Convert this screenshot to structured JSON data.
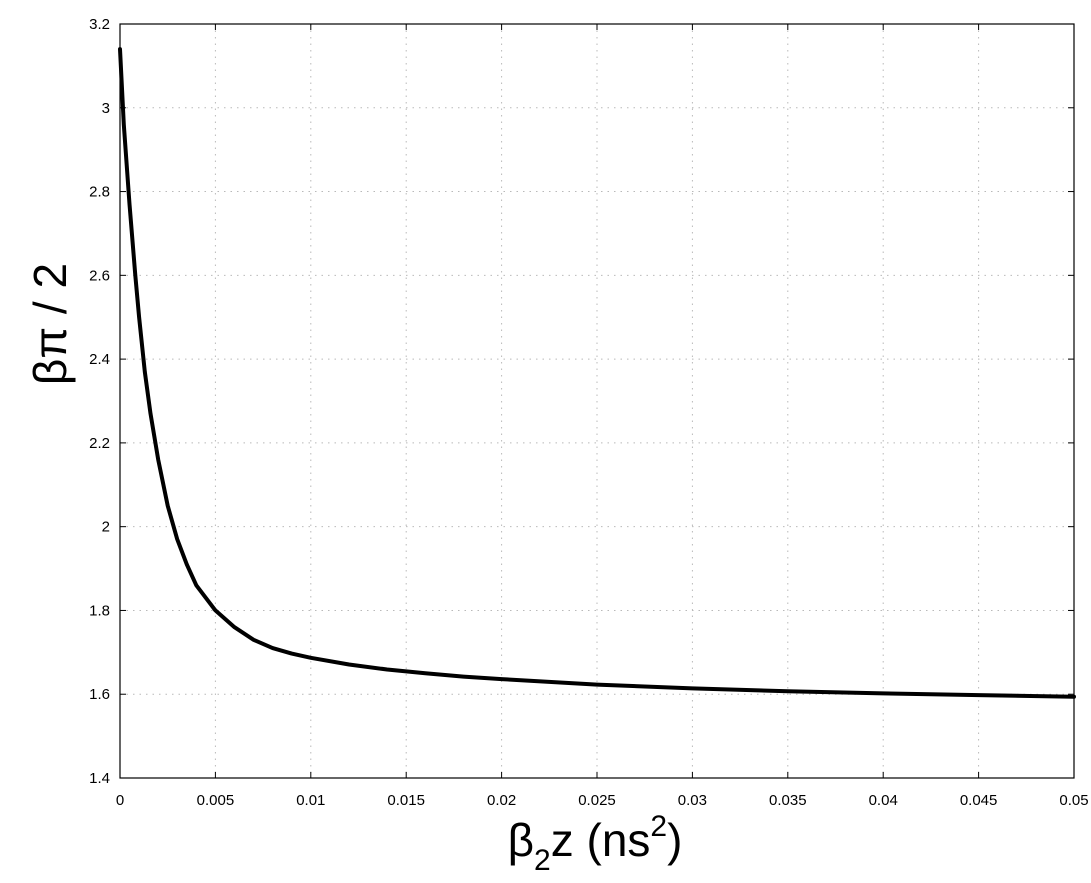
{
  "chart_data": {
    "type": "line",
    "title": "",
    "xlabel": {
      "prefix": "β",
      "sub": "2",
      "mid": "z (ns",
      "sup": "2",
      "suffix": ")"
    },
    "ylabel": "βπ / 2",
    "xlim": [
      0,
      0.05
    ],
    "ylim": [
      1.4,
      3.2
    ],
    "grid": true,
    "x_ticks": [
      0,
      0.005,
      0.01,
      0.015,
      0.02,
      0.025,
      0.03,
      0.035,
      0.04,
      0.045,
      0.05
    ],
    "x_tick_labels": [
      "0",
      "0.005",
      "0.01",
      "0.015",
      "0.02",
      "0.025",
      "0.03",
      "0.035",
      "0.04",
      "0.045",
      "0.05"
    ],
    "y_ticks": [
      1.4,
      1.6,
      1.8,
      2,
      2.2,
      2.4,
      2.6,
      2.8,
      3,
      3.2
    ],
    "y_tick_labels": [
      "1.4",
      "1.6",
      "1.8",
      "2",
      "2.2",
      "2.4",
      "2.6",
      "2.8",
      "3",
      "3.2"
    ],
    "series": [
      {
        "color": "#000000",
        "x": [
          0,
          0.0002,
          0.0005,
          0.0008,
          0.001,
          0.0013,
          0.0016,
          0.002,
          0.0025,
          0.003,
          0.0035,
          0.004,
          0.0045,
          0.005,
          0.006,
          0.007,
          0.008,
          0.009,
          0.01,
          0.012,
          0.014,
          0.016,
          0.018,
          0.02,
          0.025,
          0.03,
          0.035,
          0.04,
          0.045,
          0.05
        ],
        "y": [
          3.14,
          2.96,
          2.77,
          2.6,
          2.5,
          2.37,
          2.27,
          2.16,
          2.05,
          1.97,
          1.91,
          1.86,
          1.83,
          1.8,
          1.76,
          1.73,
          1.71,
          1.697,
          1.687,
          1.671,
          1.659,
          1.65,
          1.642,
          1.636,
          1.623,
          1.614,
          1.607,
          1.602,
          1.598,
          1.594
        ]
      }
    ]
  }
}
